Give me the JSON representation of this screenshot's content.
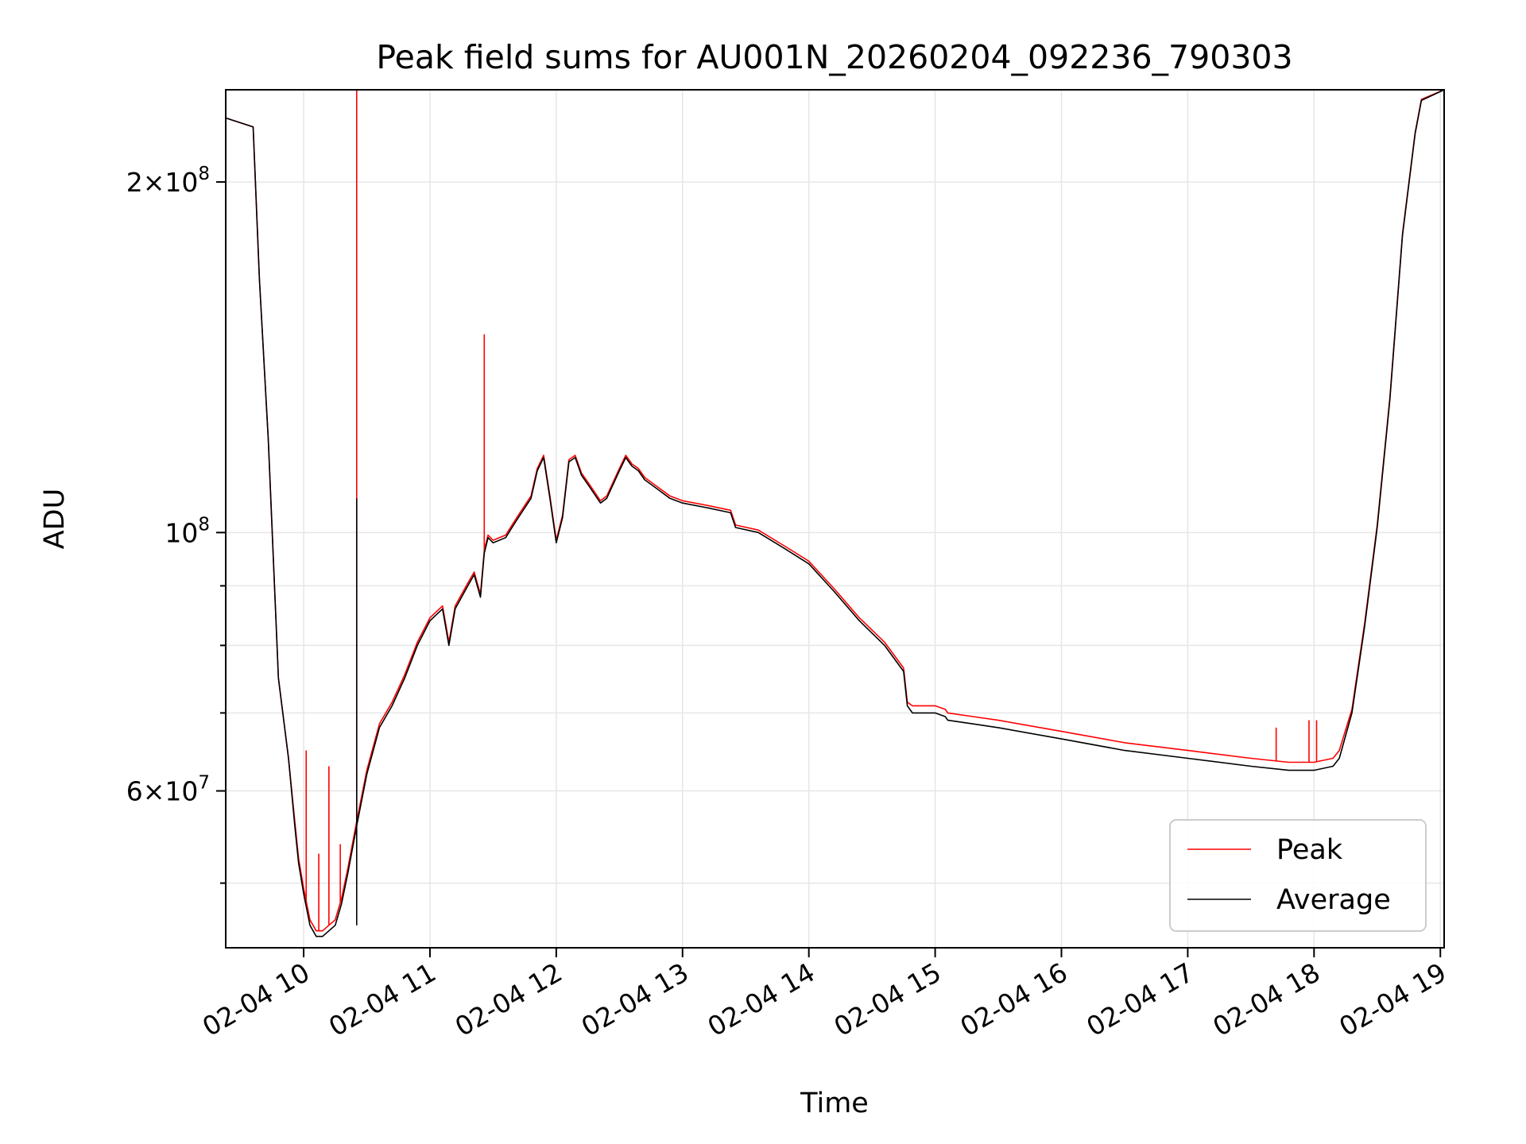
{
  "chart_data": {
    "type": "line",
    "title": "Peak field sums for AU001N_20260204_092236_790303",
    "xlabel": "Time",
    "ylabel": "ADU",
    "yscale": "log",
    "ylim": [
      44000000,
      240000000
    ],
    "xlim": [
      9.383,
      19.03
    ],
    "x_ticks": [
      {
        "value": 10,
        "label": "02-04 10"
      },
      {
        "value": 11,
        "label": "02-04 11"
      },
      {
        "value": 12,
        "label": "02-04 12"
      },
      {
        "value": 13,
        "label": "02-04 13"
      },
      {
        "value": 14,
        "label": "02-04 14"
      },
      {
        "value": 15,
        "label": "02-04 15"
      },
      {
        "value": 16,
        "label": "02-04 16"
      },
      {
        "value": 17,
        "label": "02-04 17"
      },
      {
        "value": 18,
        "label": "02-04 18"
      },
      {
        "value": 19,
        "label": "02-04 19"
      }
    ],
    "y_major_ticks": [
      {
        "value": 60000000,
        "mantissa": "6",
        "exp": "7"
      },
      {
        "value": 100000000,
        "mantissa": "",
        "exp": "8"
      },
      {
        "value": 200000000,
        "mantissa": "2",
        "exp": "8"
      }
    ],
    "y_minor_ticks": [
      50000000,
      70000000,
      80000000,
      90000000
    ],
    "grid": true,
    "legend_position": "lower-right",
    "series": [
      {
        "name": "Average",
        "color": "#000000",
        "x": [
          9.383,
          9.6,
          9.65,
          9.72,
          9.8,
          9.88,
          9.93,
          9.96,
          10.0,
          10.05,
          10.1,
          10.15,
          10.2,
          10.25,
          10.3,
          10.35,
          10.42,
          10.5,
          10.6,
          10.7,
          10.8,
          10.9,
          11.0,
          11.1,
          11.15,
          11.2,
          11.25,
          11.3,
          11.35,
          11.4,
          11.43,
          11.46,
          11.5,
          11.6,
          11.65,
          11.7,
          11.8,
          11.85,
          11.9,
          11.95,
          12.0,
          12.05,
          12.1,
          12.15,
          12.2,
          12.25,
          12.3,
          12.35,
          12.4,
          12.5,
          12.55,
          12.6,
          12.65,
          12.7,
          12.8,
          12.9,
          13.0,
          13.2,
          13.38,
          13.42,
          13.6,
          13.8,
          14.0,
          14.2,
          14.4,
          14.6,
          14.75,
          14.78,
          14.82,
          15.0,
          15.08,
          15.1,
          15.3,
          15.5,
          16.0,
          16.5,
          17.0,
          17.5,
          17.8,
          18.0,
          18.15,
          18.2,
          18.3,
          18.4,
          18.5,
          18.6,
          18.7,
          18.8,
          18.85,
          19.03
        ],
        "values": [
          227000000,
          223000000,
          165000000,
          120000000,
          75000000,
          64000000,
          56000000,
          52000000,
          49000000,
          46000000,
          45000000,
          45000000,
          45500000,
          46000000,
          48000000,
          51000000,
          56000000,
          62000000,
          68000000,
          71000000,
          75000000,
          80000000,
          84000000,
          86000000,
          80000000,
          86000000,
          88000000,
          90000000,
          92000000,
          88000000,
          96000000,
          99000000,
          98000000,
          99000000,
          101000000,
          103000000,
          107000000,
          113000000,
          116000000,
          107000000,
          98000000,
          103000000,
          115000000,
          116000000,
          112000000,
          110000000,
          108000000,
          106000000,
          107000000,
          113000000,
          116000000,
          114000000,
          113000000,
          111000000,
          109000000,
          107000000,
          106000000,
          105000000,
          104000000,
          101000000,
          100000000,
          97000000,
          94000000,
          89000000,
          84000000,
          80000000,
          76000000,
          71000000,
          70000000,
          70000000,
          69500000,
          69000000,
          68500000,
          68000000,
          66500000,
          65000000,
          64000000,
          63000000,
          62500000,
          62500000,
          63000000,
          64000000,
          70000000,
          83000000,
          101000000,
          130000000,
          180000000,
          220000000,
          235000000,
          240000000
        ]
      },
      {
        "name": "Peak",
        "color": "#ff0000",
        "x": [
          9.383,
          9.6,
          9.65,
          9.72,
          9.8,
          9.88,
          9.93,
          9.96,
          10.0,
          10.05,
          10.1,
          10.15,
          10.2,
          10.25,
          10.3,
          10.35,
          10.42,
          10.5,
          10.6,
          10.7,
          10.8,
          10.9,
          11.0,
          11.1,
          11.15,
          11.2,
          11.25,
          11.3,
          11.35,
          11.4,
          11.43,
          11.46,
          11.5,
          11.6,
          11.65,
          11.7,
          11.8,
          11.85,
          11.9,
          11.95,
          12.0,
          12.05,
          12.1,
          12.15,
          12.2,
          12.25,
          12.3,
          12.35,
          12.4,
          12.5,
          12.55,
          12.6,
          12.65,
          12.7,
          12.8,
          12.9,
          13.0,
          13.2,
          13.38,
          13.42,
          13.6,
          13.8,
          14.0,
          14.2,
          14.4,
          14.6,
          14.75,
          14.78,
          14.82,
          15.0,
          15.08,
          15.1,
          15.3,
          15.5,
          16.0,
          16.5,
          17.0,
          17.5,
          17.8,
          18.0,
          18.15,
          18.2,
          18.3,
          18.4,
          18.5,
          18.6,
          18.7,
          18.8,
          18.85,
          19.03
        ],
        "values": [
          227000000,
          223000000,
          165000000,
          120000000,
          75000000,
          64000000,
          56500000,
          52500000,
          49500000,
          46500000,
          45500000,
          45500000,
          46000000,
          46500000,
          48500000,
          51500000,
          56500000,
          62500000,
          68500000,
          71500000,
          75500000,
          80500000,
          84500000,
          86500000,
          80500000,
          86500000,
          88500000,
          90500000,
          92500000,
          88500000,
          96500000,
          99500000,
          98500000,
          99500000,
          101500000,
          103500000,
          107500000,
          113500000,
          116500000,
          107500000,
          98500000,
          103500000,
          115500000,
          116500000,
          112500000,
          110500000,
          108500000,
          106500000,
          107500000,
          113500000,
          116500000,
          114500000,
          113500000,
          111500000,
          109500000,
          107500000,
          106500000,
          105500000,
          104500000,
          101500000,
          100500000,
          97500000,
          94500000,
          89500000,
          84500000,
          80500000,
          76500000,
          71500000,
          71000000,
          71000000,
          70500000,
          70000000,
          69500000,
          69000000,
          67500000,
          66000000,
          65000000,
          64000000,
          63500000,
          63500000,
          64000000,
          65000000,
          70500000,
          83500000,
          101500000,
          130500000,
          180500000,
          220500000,
          235500000,
          240000000
        ],
        "spikes": [
          {
            "x": 10.02,
            "value": 65000000
          },
          {
            "x": 10.12,
            "value": 53000000
          },
          {
            "x": 10.2,
            "value": 63000000
          },
          {
            "x": 10.29,
            "value": 54000000
          },
          {
            "x": 10.42,
            "value": 240000000
          },
          {
            "x": 11.43,
            "value": 148000000
          },
          {
            "x": 17.7,
            "value": 68000000
          },
          {
            "x": 17.96,
            "value": 69000000
          },
          {
            "x": 18.02,
            "value": 69000000
          }
        ]
      }
    ]
  }
}
